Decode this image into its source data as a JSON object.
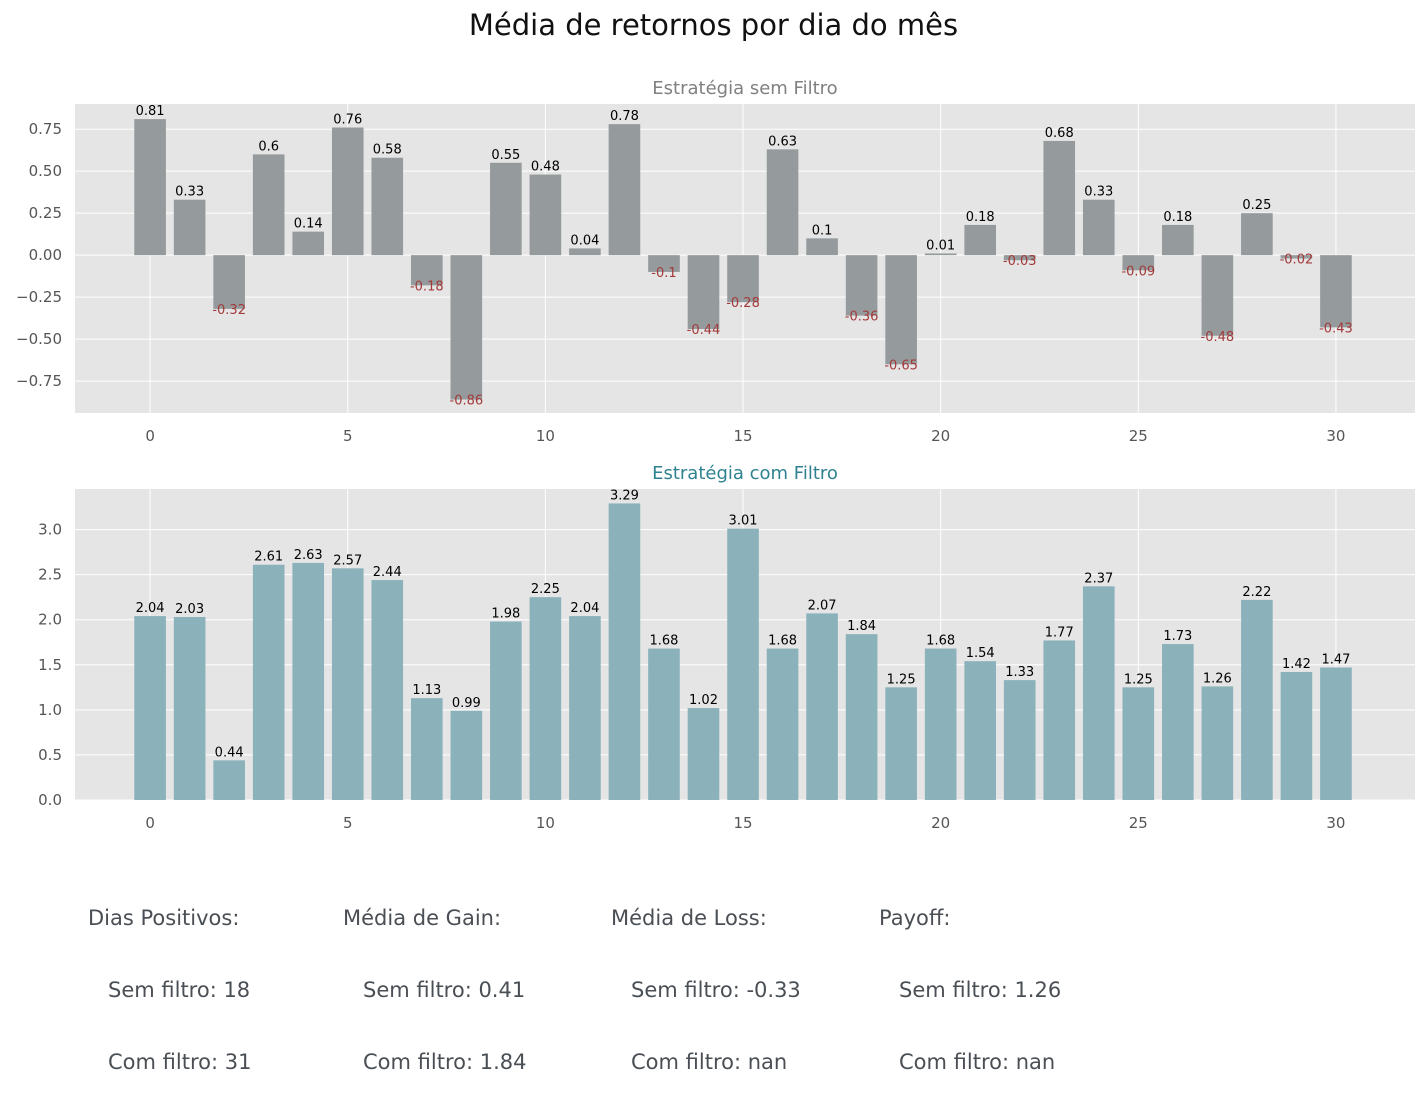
{
  "title": "Média de retornos por dia do mês",
  "colors": {
    "panel_bg": "#e5e5e5",
    "grid": "#ffffff",
    "bar_top": "#959a9c",
    "bar_bottom": "#8bb2ba",
    "title_top": "#808080",
    "title_bottom": "#2e8290",
    "neg_label": "#a33a3a",
    "pos_label": "#000000",
    "tick_label": "#555555"
  },
  "chart_data": [
    {
      "type": "bar",
      "title": "Estratégia sem Filtro",
      "x": [
        0,
        1,
        2,
        3,
        4,
        5,
        6,
        7,
        8,
        9,
        10,
        11,
        12,
        13,
        14,
        15,
        16,
        17,
        18,
        19,
        20,
        21,
        22,
        23,
        24,
        25,
        26,
        27,
        28,
        29,
        30
      ],
      "values": [
        0.81,
        0.33,
        -0.32,
        0.6,
        0.14,
        0.76,
        0.58,
        -0.18,
        -0.86,
        0.55,
        0.48,
        0.04,
        0.78,
        -0.1,
        -0.44,
        -0.28,
        0.63,
        0.1,
        -0.36,
        -0.65,
        0.01,
        0.18,
        -0.03,
        0.68,
        0.33,
        -0.09,
        0.18,
        -0.48,
        0.25,
        -0.02,
        -0.43
      ],
      "data_labels": [
        "0.81",
        "0.33",
        "-0.32",
        "0.6",
        "0.14",
        "0.76",
        "0.58",
        "-0.18",
        "-0.86",
        "0.55",
        "0.48",
        "0.04",
        "0.78",
        "-0.1",
        "-0.44",
        "-0.28",
        "0.63",
        "0.1",
        "-0.36",
        "-0.65",
        "0.01",
        "0.18",
        "-0.03",
        "0.68",
        "0.33",
        "-0.09",
        "0.18",
        "-0.48",
        "0.25",
        "-0.02",
        "-0.43"
      ],
      "xlim": [
        -1.9,
        32
      ],
      "ylim": [
        -0.94,
        0.9
      ],
      "xticks": [
        "0",
        "5",
        "10",
        "15",
        "20",
        "25",
        "30"
      ],
      "yticks": [
        "−0.75",
        "−0.50",
        "−0.25",
        "0.00",
        "0.25",
        "0.50",
        "0.75"
      ],
      "xlabel": "",
      "ylabel": "",
      "grid": true
    },
    {
      "type": "bar",
      "title": "Estratégia com Filtro",
      "x": [
        0,
        1,
        2,
        3,
        4,
        5,
        6,
        7,
        8,
        9,
        10,
        11,
        12,
        13,
        14,
        15,
        16,
        17,
        18,
        19,
        20,
        21,
        22,
        23,
        24,
        25,
        26,
        27,
        28,
        29,
        30
      ],
      "values": [
        2.04,
        2.03,
        0.44,
        2.61,
        2.63,
        2.57,
        2.44,
        1.13,
        0.99,
        1.98,
        2.25,
        2.04,
        3.29,
        1.68,
        1.02,
        3.01,
        1.68,
        2.07,
        1.84,
        1.25,
        1.68,
        1.54,
        1.33,
        1.77,
        2.37,
        1.25,
        1.73,
        1.26,
        2.22,
        1.42,
        1.47
      ],
      "data_labels": [
        "2.04",
        "2.03",
        "0.44",
        "2.61",
        "2.63",
        "2.57",
        "2.44",
        "1.13",
        "0.99",
        "1.98",
        "2.25",
        "2.04",
        "3.29",
        "1.68",
        "1.02",
        "3.01",
        "1.68",
        "2.07",
        "1.84",
        "1.25",
        "1.68",
        "1.54",
        "1.33",
        "1.77",
        "2.37",
        "1.25",
        "1.73",
        "1.26",
        "2.22",
        "1.42",
        "1.47"
      ],
      "xlim": [
        -1.9,
        32
      ],
      "ylim": [
        0,
        3.45
      ],
      "xticks": [
        "0",
        "5",
        "10",
        "15",
        "20",
        "25",
        "30"
      ],
      "yticks": [
        "0.0",
        "0.5",
        "1.0",
        "1.5",
        "2.0",
        "2.5",
        "3.0"
      ],
      "xlabel": "",
      "ylabel": "",
      "grid": true
    }
  ],
  "stats": [
    {
      "heading": "Dias Positivos:",
      "sem": "Sem filtro: 18",
      "com": "Com filtro: 31"
    },
    {
      "heading": "Média de Gain:",
      "sem": "Sem filtro: 0.41",
      "com": "Com filtro: 1.84"
    },
    {
      "heading": "Média de Loss:",
      "sem": "Sem filtro: -0.33",
      "com": "Com filtro: nan"
    },
    {
      "heading": "Payoff:",
      "sem": "Sem filtro: 1.26",
      "com": "Com filtro: nan"
    }
  ]
}
